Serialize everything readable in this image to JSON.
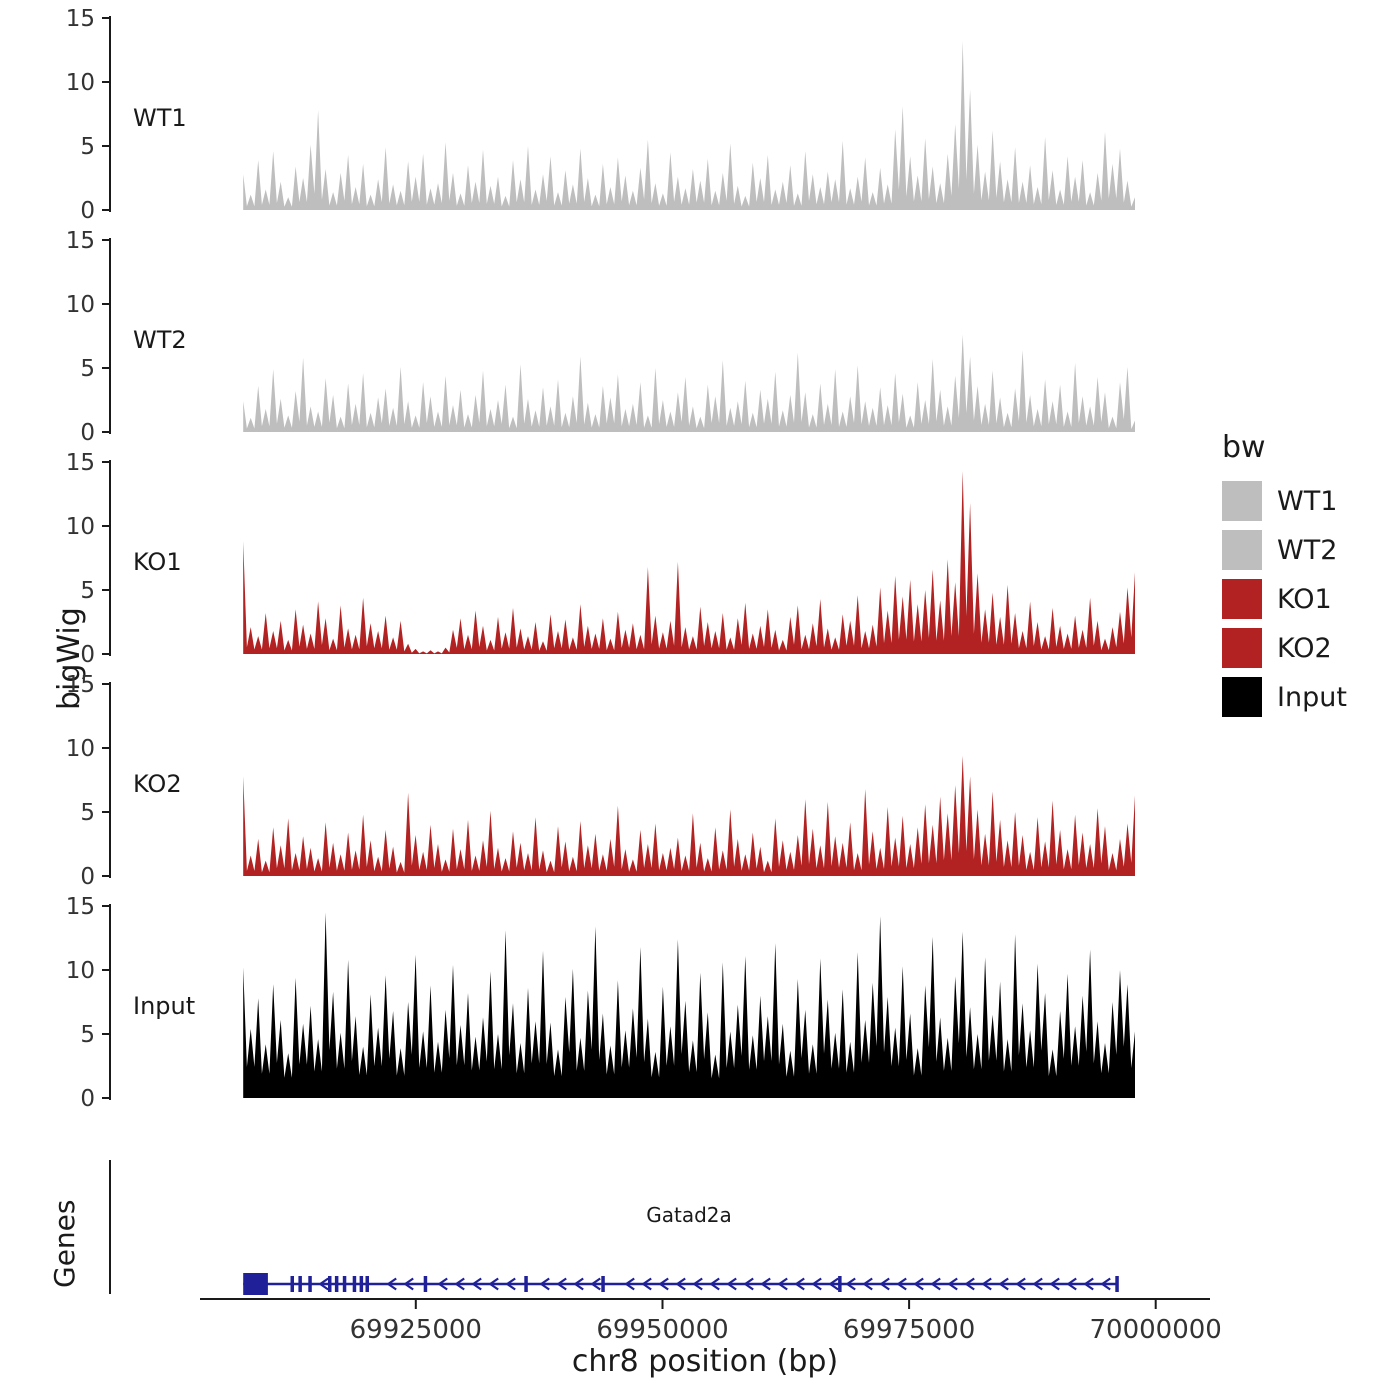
{
  "chart_data": {
    "type": "area",
    "title": "",
    "xlabel": "chr8 position (bp)",
    "ylabel": "bigWig",
    "genes_axis_label": "Genes",
    "ylim": [
      0,
      15
    ],
    "y_ticks": [
      0,
      5,
      10,
      15
    ],
    "x_domain_bp": [
      69894000,
      70005500
    ],
    "signal_range_bp": [
      69907500,
      69997900
    ],
    "x_ticks": [
      {
        "bp": 69925000,
        "label": "69925000"
      },
      {
        "bp": 69950000,
        "label": "69950000"
      },
      {
        "bp": 69975000,
        "label": "69975000"
      },
      {
        "bp": 70000000,
        "label": "70000000"
      }
    ],
    "tracks": [
      {
        "name": "WT1",
        "color": "#bebebe",
        "dip": 0.25,
        "values": [
          2.8,
          1.2,
          3.9,
          1.6,
          4.6,
          2.2,
          1.0,
          3.4,
          2.5,
          5.1,
          7.8,
          3.2,
          1.4,
          2.9,
          4.3,
          1.8,
          3.6,
          1.2,
          2.4,
          4.9,
          2.0,
          1.5,
          3.8,
          2.6,
          4.4,
          1.7,
          2.1,
          5.3,
          2.9,
          1.3,
          3.5,
          2.2,
          4.7,
          1.9,
          2.6,
          1.1,
          3.9,
          2.4,
          5.0,
          1.6,
          2.8,
          4.2,
          1.4,
          3.1,
          2.0,
          4.8,
          2.5,
          1.2,
          3.6,
          1.8,
          4.1,
          2.7,
          1.5,
          3.3,
          5.5,
          2.1,
          1.3,
          4.5,
          2.6,
          1.7,
          3.2,
          2.3,
          4.0,
          1.5,
          2.9,
          5.2,
          1.9,
          1.1,
          3.7,
          2.5,
          4.3,
          1.6,
          2.2,
          3.5,
          1.3,
          4.6,
          2.8,
          1.8,
          3.0,
          2.4,
          5.4,
          1.7,
          2.6,
          4.1,
          1.4,
          3.3,
          2.0,
          6.3,
          8.1,
          4.2,
          2.7,
          5.6,
          3.4,
          2.1,
          4.4,
          6.7,
          13.2,
          9.4,
          5.1,
          3.0,
          6.2,
          3.8,
          2.4,
          4.9,
          2.2,
          3.5,
          1.8,
          5.7,
          3.1,
          1.6,
          4.2,
          2.6,
          3.9,
          1.4,
          2.9,
          6.1,
          3.6,
          4.8,
          2.3,
          1.0
        ]
      },
      {
        "name": "WT2",
        "color": "#bebebe",
        "dip": 0.25,
        "values": [
          2.4,
          1.1,
          3.6,
          1.8,
          4.9,
          2.6,
          1.3,
          3.2,
          5.8,
          2.0,
          1.6,
          4.2,
          2.9,
          1.2,
          3.8,
          2.2,
          4.6,
          1.5,
          2.7,
          3.4,
          1.9,
          5.1,
          2.4,
          1.3,
          3.9,
          2.8,
          1.6,
          4.4,
          2.1,
          3.3,
          1.4,
          2.9,
          4.8,
          1.8,
          2.5,
          3.7,
          1.2,
          5.3,
          2.6,
          1.7,
          3.5,
          2.0,
          4.1,
          1.5,
          2.8,
          5.9,
          2.3,
          1.4,
          3.6,
          2.7,
          4.5,
          1.8,
          2.2,
          3.9,
          1.3,
          5.0,
          2.5,
          1.6,
          3.1,
          4.3,
          2.0,
          1.2,
          3.7,
          2.8,
          5.6,
          1.9,
          2.4,
          4.0,
          1.5,
          3.3,
          2.6,
          4.7,
          1.7,
          2.9,
          6.2,
          3.1,
          1.4,
          3.8,
          2.2,
          4.9,
          1.6,
          2.8,
          5.2,
          2.4,
          1.9,
          3.5,
          2.1,
          4.6,
          3.0,
          1.3,
          3.9,
          2.5,
          5.7,
          3.3,
          2.0,
          4.4,
          7.6,
          5.9,
          3.6,
          2.2,
          4.8,
          2.7,
          1.5,
          3.4,
          6.4,
          2.9,
          1.8,
          4.1,
          2.4,
          3.7,
          1.6,
          5.4,
          2.8,
          2.0,
          4.3,
          3.1,
          1.2,
          3.9,
          5.1,
          0.9
        ]
      },
      {
        "name": "KO1",
        "color": "#b22222",
        "dip": 0.25,
        "values": [
          8.8,
          2.1,
          1.4,
          3.2,
          1.8,
          2.6,
          1.1,
          3.5,
          2.3,
          1.6,
          4.1,
          2.8,
          1.2,
          3.8,
          2.0,
          1.5,
          4.4,
          2.4,
          1.8,
          3.0,
          1.3,
          2.6,
          0.8,
          0.4,
          0.2,
          0.3,
          0.2,
          0.5,
          1.9,
          2.8,
          1.5,
          3.4,
          2.2,
          1.1,
          2.9,
          1.7,
          3.6,
          2.0,
          1.4,
          2.5,
          1.0,
          3.1,
          1.8,
          2.7,
          1.3,
          3.9,
          2.2,
          1.6,
          2.8,
          1.2,
          3.3,
          1.9,
          2.4,
          1.5,
          6.8,
          3.0,
          1.7,
          2.6,
          7.2,
          2.1,
          1.4,
          3.7,
          2.5,
          1.8,
          3.2,
          1.3,
          2.8,
          4.0,
          1.6,
          2.2,
          3.5,
          1.9,
          1.1,
          2.9,
          3.8,
          1.5,
          2.4,
          4.3,
          2.0,
          1.3,
          3.1,
          2.6,
          4.6,
          1.8,
          2.3,
          5.2,
          3.4,
          6.1,
          4.5,
          5.8,
          3.9,
          5.0,
          6.6,
          4.2,
          7.4,
          5.6,
          14.3,
          11.8,
          6.3,
          3.5,
          4.8,
          2.9,
          5.4,
          3.2,
          1.8,
          4.1,
          2.5,
          1.4,
          3.6,
          2.2,
          1.6,
          3.0,
          1.9,
          4.4,
          2.6,
          1.2,
          2.1,
          3.3,
          5.2,
          6.4
        ]
      },
      {
        "name": "KO2",
        "color": "#b22222",
        "dip": 0.25,
        "values": [
          7.8,
          1.6,
          2.9,
          1.2,
          3.8,
          2.4,
          4.5,
          1.8,
          3.1,
          2.2,
          1.4,
          4.2,
          2.6,
          1.7,
          3.4,
          2.0,
          4.8,
          2.8,
          1.5,
          3.6,
          2.3,
          1.1,
          6.5,
          3.2,
          1.9,
          4.0,
          2.5,
          1.3,
          3.7,
          2.1,
          4.4,
          1.6,
          2.8,
          5.1,
          2.2,
          1.4,
          3.5,
          2.6,
          1.8,
          4.6,
          2.0,
          1.2,
          3.9,
          2.7,
          1.5,
          4.3,
          2.4,
          3.3,
          1.7,
          2.9,
          5.5,
          2.1,
          1.3,
          3.6,
          2.5,
          4.1,
          1.8,
          2.2,
          3.0,
          1.6,
          4.9,
          2.6,
          1.4,
          3.8,
          2.0,
          5.2,
          2.9,
          1.7,
          3.4,
          2.3,
          1.2,
          4.5,
          2.8,
          1.9,
          3.2,
          6.0,
          3.7,
          2.4,
          5.8,
          3.1,
          2.6,
          4.2,
          1.8,
          6.8,
          3.5,
          2.2,
          5.4,
          3.0,
          4.7,
          2.5,
          3.8,
          5.6,
          4.0,
          6.2,
          4.9,
          7.1,
          9.4,
          7.8,
          5.2,
          3.3,
          6.6,
          4.4,
          2.8,
          5.0,
          3.2,
          1.9,
          4.6,
          2.7,
          5.9,
          3.6,
          2.1,
          4.8,
          3.4,
          2.5,
          5.3,
          3.9,
          1.8,
          2.9,
          4.1,
          6.3
        ]
      },
      {
        "name": "Input",
        "color": "#000000",
        "dip": 0.45,
        "values": [
          10.2,
          5.4,
          7.8,
          4.2,
          8.9,
          6.1,
          3.5,
          9.4,
          5.8,
          7.2,
          4.6,
          14.5,
          8.3,
          5.1,
          10.8,
          6.4,
          4.0,
          8.1,
          5.5,
          9.6,
          6.8,
          3.9,
          7.5,
          11.2,
          5.2,
          8.8,
          4.4,
          6.9,
          10.4,
          5.7,
          8.2,
          4.8,
          6.3,
          9.9,
          5.0,
          13.1,
          7.4,
          4.3,
          8.6,
          6.0,
          11.5,
          5.9,
          3.8,
          7.9,
          10.1,
          4.7,
          8.4,
          13.4,
          6.6,
          4.1,
          9.2,
          5.3,
          7.0,
          11.8,
          6.2,
          3.6,
          8.7,
          5.6,
          12.4,
          7.6,
          4.5,
          9.8,
          6.7,
          3.4,
          10.6,
          5.2,
          7.3,
          11.1,
          4.9,
          8.0,
          6.4,
          12.1,
          5.8,
          3.7,
          9.3,
          6.9,
          4.2,
          10.9,
          7.7,
          5.1,
          8.5,
          4.4,
          11.4,
          6.1,
          9.0,
          14.2,
          7.9,
          5.5,
          10.3,
          6.6,
          3.9,
          8.8,
          12.6,
          6.3,
          4.7,
          9.5,
          13.0,
          7.1,
          5.0,
          11.0,
          6.5,
          9.1,
          4.6,
          12.8,
          7.4,
          5.3,
          10.5,
          8.2,
          3.8,
          6.8,
          9.7,
          5.6,
          8.0,
          11.6,
          6.0,
          4.3,
          7.5,
          10.0,
          8.9,
          5.2
        ]
      }
    ],
    "genes": {
      "gene": {
        "name": "Gatad2a",
        "strand": "-",
        "start_bp": 69907500,
        "end_bp": 69996200,
        "color": "#202099",
        "exons_bp": [
          [
            69907500,
            69910000
          ],
          [
            69912300,
            69912600
          ],
          [
            69913100,
            69913400
          ],
          [
            69914100,
            69914400
          ],
          [
            69916100,
            69916400
          ],
          [
            69916800,
            69917100
          ],
          [
            69917600,
            69917900
          ],
          [
            69918600,
            69918900
          ],
          [
            69919300,
            69919600
          ],
          [
            69919900,
            69920200
          ],
          [
            69925800,
            69926100
          ],
          [
            69936000,
            69936300
          ],
          [
            69943800,
            69944100
          ],
          [
            69967800,
            69968100
          ],
          [
            69995900,
            69996200
          ]
        ]
      }
    }
  },
  "legend": {
    "title": "bw",
    "items": [
      {
        "label": "WT1",
        "color": "#bebebe"
      },
      {
        "label": "WT2",
        "color": "#bebebe"
      },
      {
        "label": "KO1",
        "color": "#b22222"
      },
      {
        "label": "KO2",
        "color": "#b22222"
      },
      {
        "label": "Input",
        "color": "#000000"
      }
    ]
  }
}
